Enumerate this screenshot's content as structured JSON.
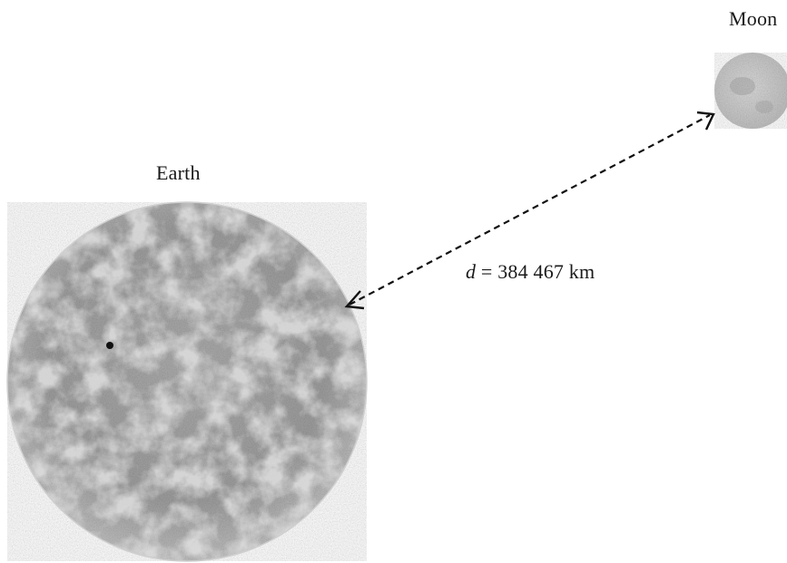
{
  "labels": {
    "earth": "Earth",
    "moon": "Moon",
    "distance_variable": "d",
    "distance_value": " = 384 467 km"
  },
  "colors": {
    "earth_light": "#dcdcdc",
    "earth_mid": "#a8a8a8",
    "earth_dark": "#777777",
    "moon_light": "#e4e4e4",
    "moon_dark": "#b4b4b4",
    "arrow": "#111111"
  }
}
